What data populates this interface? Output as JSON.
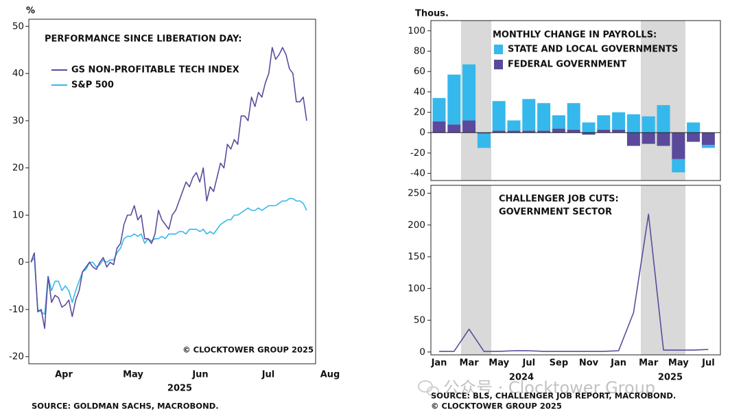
{
  "chart_data": [
    {
      "type": "line",
      "title": "PERFORMANCE SINCE LIBERATION DAY:",
      "y_unit": "%",
      "x_tick_labels": [
        "Apr",
        "May",
        "Jun",
        "Jul",
        "Aug"
      ],
      "x_axis_label": "2025",
      "ylim": [
        -21.5,
        51.5
      ],
      "yticks": [
        -20,
        -10,
        0,
        10,
        20,
        30,
        40,
        50
      ],
      "annotation": "© CLOCKTOWER GROUP 2025",
      "series": [
        {
          "name": "GS NON-PROFITABLE TECH INDEX",
          "color": "#5b4a9b",
          "values": [
            0,
            2,
            -10.5,
            -10,
            -14,
            -3,
            -8.5,
            -7,
            -7.5,
            -9.5,
            -9,
            -8,
            -11.5,
            -8,
            -6,
            -2,
            -1,
            0,
            -1,
            -1.5,
            0,
            1,
            -1,
            0,
            -0.5,
            3,
            4,
            8,
            10,
            10,
            12,
            9,
            10,
            5,
            5,
            4,
            6,
            11,
            9,
            8,
            7,
            10,
            11,
            13,
            15,
            17,
            16,
            18,
            19,
            17,
            20,
            13,
            16,
            15,
            18,
            21,
            20,
            25,
            24,
            26,
            25,
            31,
            31,
            30,
            35,
            33,
            36,
            35,
            38,
            40,
            45.5,
            43,
            44,
            45.5,
            44,
            41,
            40,
            34,
            34,
            35,
            30
          ]
        },
        {
          "name": "S&P 500",
          "color": "#35b8ec",
          "values": [
            0,
            1,
            -10,
            -10.5,
            -11,
            -3,
            -6,
            -4,
            -4,
            -6,
            -5,
            -6,
            -8.5,
            -6,
            -4,
            -2,
            -1.5,
            0,
            0,
            -1,
            -0.5,
            0.5,
            0,
            0.5,
            0.5,
            2,
            3,
            5,
            5.5,
            5.5,
            6,
            5.5,
            6,
            4,
            5,
            4.5,
            5,
            5,
            5.5,
            5,
            6,
            6,
            6,
            6.5,
            6.5,
            6,
            7,
            7,
            7,
            6.5,
            7,
            6,
            6.5,
            6,
            7,
            8,
            8.5,
            9,
            9,
            10,
            10,
            10.5,
            11,
            11.5,
            11,
            11,
            11.5,
            11,
            11.5,
            12,
            12,
            12,
            12.5,
            13,
            13,
            13.5,
            13.5,
            13,
            13,
            12.5,
            11
          ]
        }
      ]
    },
    {
      "type": "bar",
      "stacked": true,
      "title": "MONTHLY CHANGE IN PAYROLLS:",
      "y_unit": "Thous.",
      "categories": [
        "Jan",
        null,
        "Mar",
        null,
        "May",
        null,
        "Jul",
        null,
        "Sep",
        null,
        "Nov",
        null,
        "Jan",
        null,
        "Mar",
        null,
        "May",
        null,
        "Jul"
      ],
      "x_axis_labels": [
        "2024",
        "2025"
      ],
      "ylim": [
        -47,
        110
      ],
      "yticks": [
        -40,
        -20,
        0,
        20,
        40,
        60,
        80,
        100
      ],
      "series": [
        {
          "name": "STATE AND LOCAL GOVERNMENTS",
          "color": "#35b8ec",
          "values": [
            23,
            49,
            55,
            -14,
            29,
            10,
            31,
            27,
            13,
            26,
            10,
            14,
            17,
            18,
            16,
            27,
            -13,
            10,
            -3
          ]
        },
        {
          "name": "FEDERAL GOVERNMENT",
          "color": "#5b4a9b",
          "values": [
            11,
            8,
            12,
            -1,
            2,
            2,
            2,
            2,
            4,
            3,
            -2,
            3,
            3,
            -13,
            -11,
            -13,
            -26,
            -9,
            -12
          ]
        }
      ]
    },
    {
      "type": "line",
      "title": [
        "CHALLENGER JOB CUTS:",
        "GOVERNMENT SECTOR"
      ],
      "categories": [
        "Jan",
        null,
        "Mar",
        null,
        "May",
        null,
        "Jul",
        null,
        "Sep",
        null,
        "Nov",
        null,
        "Jan",
        null,
        "Mar",
        null,
        "May",
        null,
        "Jul"
      ],
      "x_axis_labels": [
        "2024",
        "2025"
      ],
      "ylim": [
        -4.5,
        262.5
      ],
      "yticks": [
        0,
        50,
        100,
        150,
        200,
        250
      ],
      "color": "#5b4a9b",
      "values": [
        1,
        1,
        36,
        1,
        1,
        2,
        2,
        1,
        1,
        1,
        1,
        1,
        2,
        62,
        217,
        3,
        3,
        3,
        4
      ]
    }
  ],
  "sources": {
    "left": "SOURCE: GOLDMAN SACHS, MACROBOND.",
    "right": "SOURCE: BLS, CHALLENGER JOB REPORT, MACROBOND.",
    "right_copyright": "© CLOCKTOWER GROUP 2025"
  },
  "watermark": "公众号 · Clocktower Group"
}
